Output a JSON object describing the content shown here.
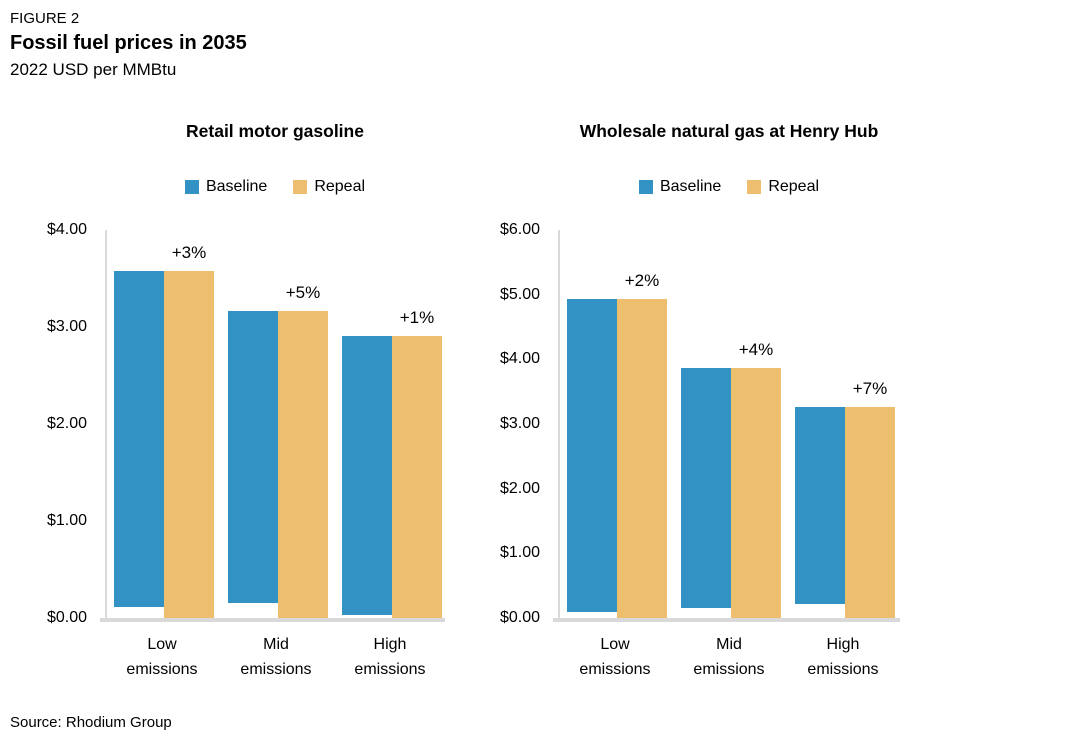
{
  "header": {
    "figure_label": "FIGURE 2",
    "title": "Fossil fuel prices in 2035",
    "subtitle": "2022 USD per MMBtu"
  },
  "legend": [
    "Baseline",
    "Repeal"
  ],
  "colors": {
    "baseline": "#3292c4",
    "repeal": "#ecbe6e",
    "axis": "#d9d9d9"
  },
  "chart_data": [
    {
      "type": "bar",
      "title": "Retail motor gasoline",
      "categories": [
        "Low emissions",
        "Mid emissions",
        "High emissions"
      ],
      "series": [
        {
          "name": "Baseline",
          "values": [
            3.47,
            3.01,
            2.88
          ]
        },
        {
          "name": "Repeal",
          "values": [
            3.58,
            3.16,
            2.91
          ]
        }
      ],
      "annotations": [
        "+3%",
        "+5%",
        "+1%"
      ],
      "ylabel": "",
      "ylim": [
        0,
        4
      ],
      "yticklabels": [
        "$0.00",
        "$1.00",
        "$2.00",
        "$3.00",
        "$4.00"
      ],
      "grid": false,
      "legend_position": "top-center"
    },
    {
      "type": "bar",
      "title": "Wholesale natural gas at Henry Hub",
      "categories": [
        "Low emissions",
        "Mid emissions",
        "High emissions"
      ],
      "series": [
        {
          "name": "Baseline",
          "values": [
            4.84,
            3.7,
            3.05
          ]
        },
        {
          "name": "Repeal",
          "values": [
            4.94,
            3.86,
            3.26
          ]
        }
      ],
      "annotations": [
        "+2%",
        "+4%",
        "+7%"
      ],
      "ylabel": "",
      "ylim": [
        0,
        6
      ],
      "yticklabels": [
        "$0.00",
        "$1.00",
        "$2.00",
        "$3.00",
        "$4.00",
        "$5.00",
        "$6.00"
      ],
      "grid": false,
      "legend_position": "top-center"
    }
  ],
  "source": "Source: Rhodium Group"
}
